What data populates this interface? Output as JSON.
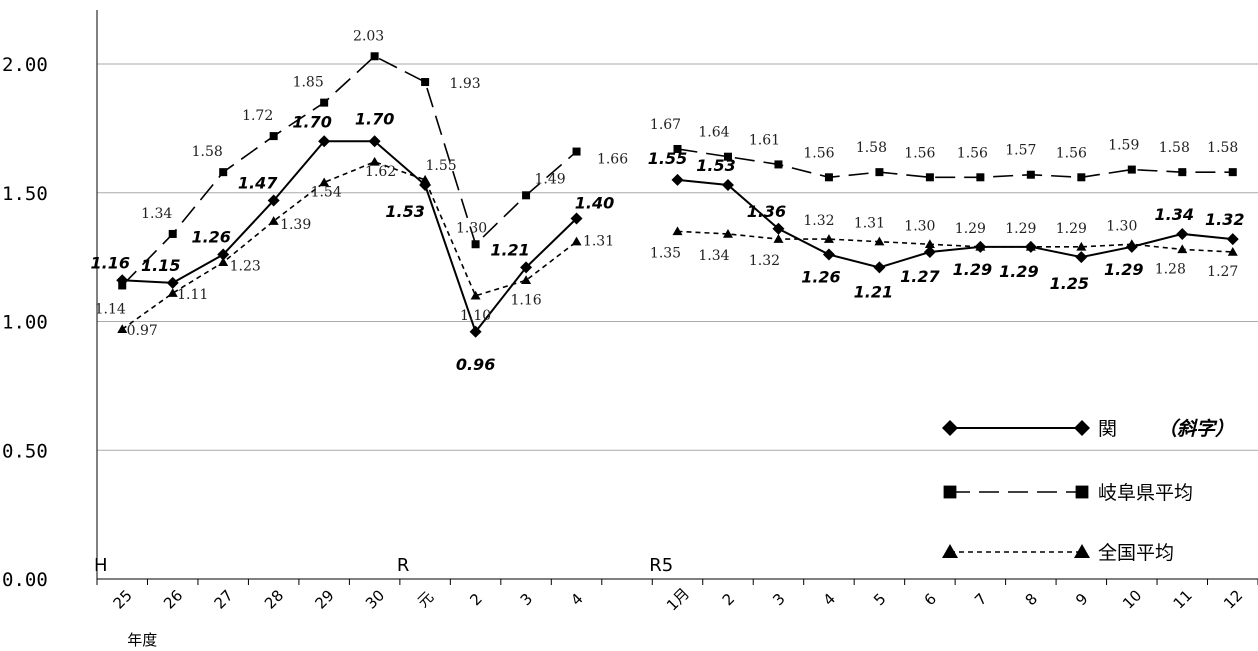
{
  "chart_data": {
    "type": "line",
    "ylim": [
      0,
      2.0
    ],
    "yticks": [
      "0.00",
      "0.50",
      "1.00",
      "1.50",
      "2.00"
    ],
    "categories": [
      "25",
      "26",
      "27",
      "28",
      "29",
      "30",
      "元",
      "2",
      "3",
      "4",
      "",
      "1月",
      "2",
      "3",
      "4",
      "5",
      "6",
      "7",
      "8",
      "9",
      "10",
      "11",
      "12"
    ],
    "x_unit_label": "年度",
    "era_labels": [
      {
        "text": "H",
        "index": 0
      },
      {
        "text": "R",
        "index": 6
      },
      {
        "text": "R5",
        "index": 11
      }
    ],
    "series": [
      {
        "name": "関",
        "name_note": "（斜字）",
        "marker": "diamond",
        "dash": "solid",
        "values": [
          1.16,
          1.15,
          1.26,
          1.47,
          1.7,
          1.7,
          1.53,
          0.96,
          1.21,
          1.4,
          null,
          1.55,
          1.53,
          1.36,
          1.26,
          1.21,
          1.27,
          1.29,
          1.29,
          1.25,
          1.29,
          1.34,
          1.32
        ],
        "labels": [
          "1.16",
          "1.15",
          "1.26",
          "1.47",
          "1.70",
          "1.70",
          "1.53",
          "0.96",
          "1.21",
          "1.40",
          "",
          "1.55",
          "1.53",
          "1.36",
          "1.26",
          "1.21",
          "1.27",
          "1.29",
          "1.29",
          "1.25",
          "1.29",
          "1.34",
          "1.32"
        ]
      },
      {
        "name": "岐阜県平均",
        "marker": "square",
        "dash": "long",
        "values": [
          1.14,
          1.34,
          1.58,
          1.72,
          1.85,
          2.03,
          1.93,
          1.3,
          1.49,
          1.66,
          null,
          1.67,
          1.64,
          1.61,
          1.56,
          1.58,
          1.56,
          1.56,
          1.57,
          1.56,
          1.59,
          1.58,
          1.58
        ],
        "labels": [
          "1.14",
          "1.34",
          "1.58",
          "1.72",
          "1.85",
          "2.03",
          "1.93",
          "1.30",
          "1.49",
          "1.66",
          "",
          "1.67",
          "1.64",
          "1.61",
          "1.56",
          "1.58",
          "1.56",
          "1.56",
          "1.57",
          "1.56",
          "1.59",
          "1.58",
          "1.58"
        ]
      },
      {
        "name": "全国平均",
        "marker": "triangle",
        "dash": "short",
        "values": [
          0.97,
          1.11,
          1.23,
          1.39,
          1.54,
          1.62,
          1.55,
          1.1,
          1.16,
          1.31,
          null,
          1.35,
          1.34,
          1.32,
          1.32,
          1.31,
          1.3,
          1.29,
          1.29,
          1.29,
          1.3,
          1.28,
          1.27
        ],
        "labels": [
          "0.97",
          "1.11",
          "1.23",
          "1.39",
          "1.54",
          "1.62",
          "1.55",
          "1.10",
          "1.16",
          "1.31",
          "",
          "1.35",
          "1.34",
          "1.32",
          "1.32",
          "1.31",
          "1.30",
          "1.29",
          "1.29",
          "1.29",
          "1.30",
          "1.28",
          "1.27"
        ]
      }
    ],
    "legend_position": "bottom-right",
    "grid": "horizontal"
  }
}
